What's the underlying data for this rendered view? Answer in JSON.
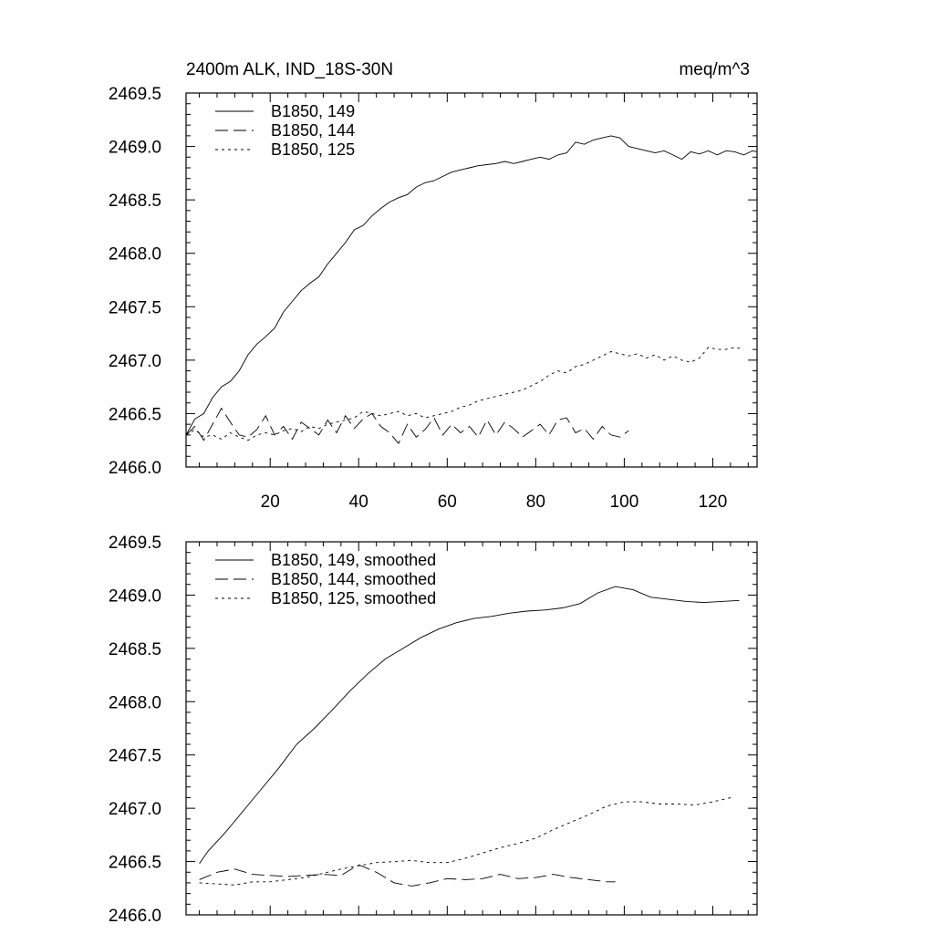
{
  "chart_data": [
    {
      "type": "line",
      "title_left": "2400m ALK, IND_18S-30N",
      "title_right": "meq/m^3",
      "xlim": [
        1,
        130
      ],
      "ylim": [
        2466.0,
        2469.5
      ],
      "x_ticks": [
        20,
        40,
        60,
        80,
        100,
        120
      ],
      "x_tick_labels": [
        "20",
        "40",
        "60",
        "80",
        "100",
        "120"
      ],
      "y_ticks": [
        2466.0,
        2466.5,
        2467.0,
        2467.5,
        2468.0,
        2468.5,
        2469.0,
        2469.5
      ],
      "y_tick_labels": [
        "2466.0",
        "2466.5",
        "2467.0",
        "2467.5",
        "2468.0",
        "2468.5",
        "2469.0",
        "2469.5"
      ],
      "legend_position": "top-left",
      "series": [
        {
          "name": "B1850, 149",
          "style": "solid",
          "x": [
            1,
            3,
            5,
            7,
            9,
            11,
            13,
            15,
            17,
            19,
            21,
            23,
            25,
            27,
            29,
            31,
            33,
            35,
            37,
            39,
            41,
            43,
            45,
            47,
            49,
            51,
            53,
            55,
            57,
            59,
            61,
            63,
            65,
            67,
            69,
            71,
            73,
            75,
            77,
            79,
            81,
            83,
            85,
            87,
            89,
            91,
            93,
            95,
            97,
            99,
            101,
            103,
            105,
            107,
            109,
            111,
            113,
            115,
            117,
            119,
            121,
            123,
            125,
            127,
            129,
            130
          ],
          "values": [
            2466.3,
            2466.45,
            2466.5,
            2466.65,
            2466.75,
            2466.8,
            2466.9,
            2467.05,
            2467.15,
            2467.22,
            2467.3,
            2467.45,
            2467.55,
            2467.65,
            2467.72,
            2467.78,
            2467.9,
            2468.0,
            2468.1,
            2468.22,
            2468.26,
            2468.35,
            2468.42,
            2468.48,
            2468.52,
            2468.55,
            2468.62,
            2468.66,
            2468.68,
            2468.72,
            2468.76,
            2468.78,
            2468.8,
            2468.82,
            2468.83,
            2468.84,
            2468.86,
            2468.84,
            2468.86,
            2468.88,
            2468.9,
            2468.88,
            2468.92,
            2468.94,
            2469.04,
            2469.02,
            2469.06,
            2469.08,
            2469.1,
            2469.08,
            2469.0,
            2468.98,
            2468.96,
            2468.94,
            2468.96,
            2468.92,
            2468.88,
            2468.95,
            2468.93,
            2468.96,
            2468.92,
            2468.96,
            2468.95,
            2468.92,
            2468.96,
            2468.95
          ]
        },
        {
          "name": "B1850, 144",
          "style": "dashed",
          "x": [
            1,
            3,
            5,
            7,
            9,
            11,
            13,
            15,
            17,
            19,
            21,
            23,
            25,
            27,
            29,
            31,
            33,
            35,
            37,
            39,
            41,
            43,
            45,
            47,
            49,
            51,
            53,
            55,
            57,
            59,
            61,
            63,
            65,
            67,
            69,
            71,
            73,
            75,
            77,
            79,
            81,
            83,
            85,
            87,
            89,
            91,
            93,
            95,
            97,
            99,
            101
          ],
          "values": [
            2466.3,
            2466.38,
            2466.25,
            2466.4,
            2466.55,
            2466.42,
            2466.3,
            2466.28,
            2466.35,
            2466.48,
            2466.3,
            2466.38,
            2466.26,
            2466.42,
            2466.36,
            2466.3,
            2466.44,
            2466.32,
            2466.48,
            2466.36,
            2466.45,
            2466.5,
            2466.38,
            2466.32,
            2466.22,
            2466.4,
            2466.28,
            2466.35,
            2466.46,
            2466.3,
            2466.4,
            2466.32,
            2466.38,
            2466.28,
            2466.44,
            2466.3,
            2466.42,
            2466.36,
            2466.28,
            2466.34,
            2466.4,
            2466.3,
            2466.44,
            2466.46,
            2466.32,
            2466.36,
            2466.26,
            2466.38,
            2466.3,
            2466.28,
            2466.34
          ]
        },
        {
          "name": "B1850, 125",
          "style": "dotted",
          "x": [
            1,
            3,
            5,
            7,
            9,
            11,
            13,
            15,
            17,
            19,
            21,
            23,
            25,
            27,
            29,
            31,
            33,
            35,
            37,
            39,
            41,
            43,
            45,
            47,
            49,
            51,
            53,
            55,
            57,
            59,
            61,
            63,
            65,
            67,
            69,
            71,
            73,
            75,
            77,
            79,
            81,
            83,
            85,
            87,
            89,
            91,
            93,
            95,
            97,
            99,
            101,
            103,
            105,
            107,
            109,
            111,
            113,
            115,
            117,
            119,
            121,
            123,
            125,
            127
          ],
          "values": [
            2466.3,
            2466.35,
            2466.28,
            2466.3,
            2466.26,
            2466.32,
            2466.28,
            2466.25,
            2466.3,
            2466.32,
            2466.3,
            2466.34,
            2466.36,
            2466.33,
            2466.38,
            2466.36,
            2466.4,
            2466.42,
            2466.44,
            2466.46,
            2466.52,
            2466.5,
            2466.48,
            2466.5,
            2466.52,
            2466.48,
            2466.5,
            2466.46,
            2466.48,
            2466.5,
            2466.52,
            2466.56,
            2466.58,
            2466.62,
            2466.64,
            2466.66,
            2466.68,
            2466.7,
            2466.72,
            2466.76,
            2466.8,
            2466.86,
            2466.9,
            2466.88,
            2466.94,
            2466.96,
            2467.0,
            2467.04,
            2467.08,
            2467.06,
            2467.04,
            2467.06,
            2467.02,
            2467.05,
            2467.0,
            2467.04,
            2467.0,
            2466.98,
            2467.02,
            2467.12,
            2467.1,
            2467.1,
            2467.12,
            2467.1
          ]
        }
      ]
    },
    {
      "type": "line",
      "title_left": "",
      "title_right": "",
      "xlim": [
        1,
        130
      ],
      "ylim": [
        2466.0,
        2469.5
      ],
      "x_ticks": [
        20,
        40,
        60,
        80,
        100,
        120
      ],
      "x_tick_labels": [],
      "y_ticks": [
        2466.0,
        2466.5,
        2467.0,
        2467.5,
        2468.0,
        2468.5,
        2469.0,
        2469.5
      ],
      "y_tick_labels": [
        "2466.0",
        "2466.5",
        "2467.0",
        "2467.5",
        "2468.0",
        "2468.5",
        "2469.0",
        "2469.5"
      ],
      "legend_position": "top-left",
      "series": [
        {
          "name": "B1850, 149, smoothed",
          "style": "solid",
          "x": [
            4,
            6,
            10,
            14,
            18,
            22,
            26,
            30,
            34,
            38,
            42,
            46,
            50,
            54,
            58,
            62,
            66,
            70,
            74,
            78,
            82,
            86,
            90,
            94,
            98,
            102,
            106,
            110,
            114,
            118,
            122,
            126
          ],
          "values": [
            2466.48,
            2466.6,
            2466.78,
            2466.98,
            2467.18,
            2467.38,
            2467.6,
            2467.75,
            2467.92,
            2468.1,
            2468.26,
            2468.4,
            2468.5,
            2468.6,
            2468.68,
            2468.74,
            2468.78,
            2468.8,
            2468.83,
            2468.85,
            2468.86,
            2468.88,
            2468.92,
            2469.02,
            2469.08,
            2469.05,
            2468.98,
            2468.96,
            2468.94,
            2468.93,
            2468.94,
            2468.95
          ]
        },
        {
          "name": "B1850, 144, smoothed",
          "style": "dashed",
          "x": [
            4,
            8,
            12,
            16,
            20,
            24,
            28,
            32,
            36,
            40,
            44,
            48,
            52,
            56,
            60,
            64,
            68,
            72,
            76,
            80,
            84,
            88,
            92,
            96,
            98
          ],
          "values": [
            2466.33,
            2466.4,
            2466.43,
            2466.38,
            2466.37,
            2466.36,
            2466.37,
            2466.38,
            2466.37,
            2466.47,
            2466.4,
            2466.3,
            2466.27,
            2466.3,
            2466.34,
            2466.33,
            2466.34,
            2466.38,
            2466.34,
            2466.35,
            2466.38,
            2466.35,
            2466.33,
            2466.31,
            2466.31
          ]
        },
        {
          "name": "B1850, 125, smoothed",
          "style": "dotted",
          "x": [
            4,
            8,
            12,
            16,
            20,
            24,
            28,
            32,
            36,
            40,
            44,
            48,
            52,
            56,
            60,
            64,
            68,
            72,
            76,
            80,
            84,
            88,
            92,
            96,
            100,
            104,
            108,
            112,
            116,
            120,
            124
          ],
          "values": [
            2466.3,
            2466.29,
            2466.28,
            2466.31,
            2466.31,
            2466.33,
            2466.35,
            2466.39,
            2466.43,
            2466.46,
            2466.49,
            2466.5,
            2466.51,
            2466.49,
            2466.49,
            2466.53,
            2466.58,
            2466.63,
            2466.67,
            2466.72,
            2466.8,
            2466.87,
            2466.94,
            2467.02,
            2467.06,
            2467.06,
            2467.04,
            2467.04,
            2467.03,
            2467.06,
            2467.1
          ]
        }
      ]
    }
  ]
}
